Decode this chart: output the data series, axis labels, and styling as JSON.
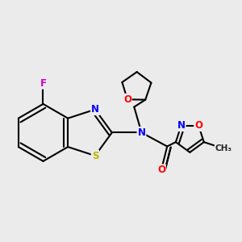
{
  "bg_color": "#ebebeb",
  "bond_color": "#000000",
  "bond_width": 1.5,
  "atoms": {
    "F": {
      "color": "#cc00cc",
      "fontsize": 8.5
    },
    "N": {
      "color": "#0000ff",
      "fontsize": 8.5
    },
    "O": {
      "color": "#ff0000",
      "fontsize": 8.5
    },
    "S": {
      "color": "#b8b800",
      "fontsize": 8.5
    }
  },
  "figsize": [
    3.0,
    3.0
  ],
  "dpi": 100
}
